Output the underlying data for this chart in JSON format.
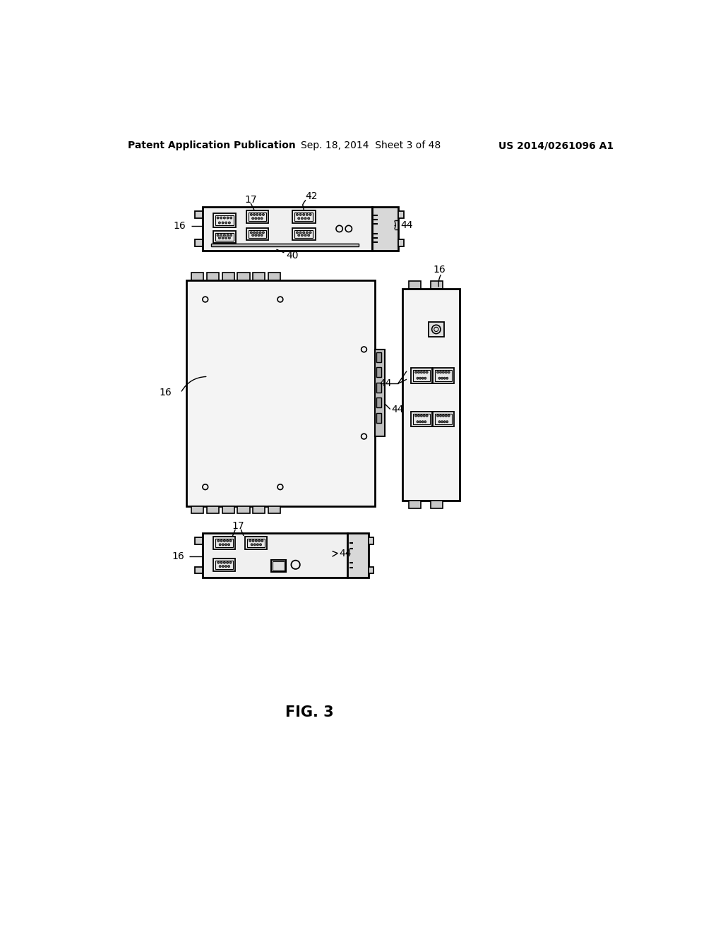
{
  "bg_color": "#ffffff",
  "header_left": "Patent Application Publication",
  "header_center": "Sep. 18, 2014  Sheet 3 of 48",
  "header_right": "US 2014/0261096 A1",
  "fig_label": "FIG. 3"
}
